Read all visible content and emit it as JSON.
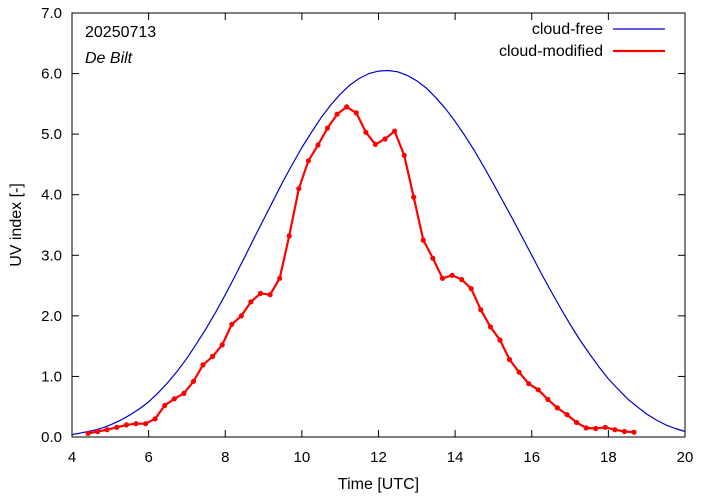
{
  "chart_data": {
    "type": "line",
    "title": "",
    "xlabel": "Time  [UTC]",
    "ylabel": "UV index  [-]",
    "xlim": [
      4,
      20
    ],
    "ylim": [
      0,
      7
    ],
    "xticks": [
      4,
      6,
      8,
      10,
      12,
      14,
      16,
      18,
      20
    ],
    "xtick_labels": [
      "4",
      "6",
      "8",
      "10",
      "12",
      "14",
      "16",
      "18",
      "20"
    ],
    "yticks": [
      0,
      1,
      2,
      3,
      4,
      5,
      6,
      7
    ],
    "ytick_labels": [
      "0.0",
      "1.0",
      "2.0",
      "3.0",
      "4.0",
      "5.0",
      "6.0",
      "7.0"
    ],
    "grid": false,
    "legend_position": "top-right",
    "annotations": [
      {
        "text": "20250713",
        "style": "normal"
      },
      {
        "text": "De Bilt",
        "style": "italic"
      }
    ],
    "series": [
      {
        "name": "cloud-free",
        "color": "#0000cc",
        "marker": "none",
        "x": [
          4.0,
          4.25,
          4.5,
          4.75,
          5.0,
          5.25,
          5.5,
          5.75,
          6.0,
          6.25,
          6.5,
          6.75,
          7.0,
          7.25,
          7.5,
          7.75,
          8.0,
          8.25,
          8.5,
          8.75,
          9.0,
          9.25,
          9.5,
          9.75,
          10.0,
          10.25,
          10.5,
          10.75,
          11.0,
          11.25,
          11.5,
          11.75,
          12.0,
          12.25,
          12.5,
          12.75,
          13.0,
          13.25,
          13.5,
          13.75,
          14.0,
          14.25,
          14.5,
          14.75,
          15.0,
          15.25,
          15.5,
          15.75,
          16.0,
          16.25,
          16.5,
          16.75,
          17.0,
          17.25,
          17.5,
          17.75,
          18.0,
          18.25,
          18.5,
          18.75,
          19.0,
          19.25,
          19.5,
          19.75,
          20.0
        ],
        "y": [
          0.04,
          0.07,
          0.1,
          0.14,
          0.2,
          0.27,
          0.36,
          0.46,
          0.58,
          0.73,
          0.9,
          1.09,
          1.3,
          1.54,
          1.79,
          2.06,
          2.35,
          2.65,
          2.96,
          3.28,
          3.59,
          3.9,
          4.21,
          4.5,
          4.78,
          5.03,
          5.27,
          5.48,
          5.66,
          5.81,
          5.92,
          6.0,
          6.04,
          6.05,
          6.03,
          5.97,
          5.88,
          5.76,
          5.6,
          5.42,
          5.21,
          4.98,
          4.73,
          4.46,
          4.18,
          3.89,
          3.6,
          3.3,
          3.0,
          2.7,
          2.41,
          2.13,
          1.86,
          1.61,
          1.38,
          1.16,
          0.96,
          0.79,
          0.63,
          0.5,
          0.38,
          0.28,
          0.2,
          0.14,
          0.09
        ]
      },
      {
        "name": "cloud-modified",
        "color": "#ff0000",
        "marker": "circle",
        "x": [
          4.42,
          4.67,
          4.92,
          5.17,
          5.42,
          5.67,
          5.92,
          6.17,
          6.42,
          6.67,
          6.92,
          7.17,
          7.42,
          7.67,
          7.92,
          8.17,
          8.42,
          8.67,
          8.92,
          9.17,
          9.42,
          9.67,
          9.92,
          10.17,
          10.42,
          10.67,
          10.92,
          11.17,
          11.42,
          11.67,
          11.92,
          12.17,
          12.42,
          12.67,
          12.92,
          13.17,
          13.42,
          13.67,
          13.92,
          14.17,
          14.42,
          14.67,
          14.92,
          15.17,
          15.42,
          15.67,
          15.92,
          16.17,
          16.42,
          16.67,
          16.92,
          17.17,
          17.42,
          17.67,
          17.92,
          18.17,
          18.42,
          18.67
        ],
        "y": [
          0.06,
          0.09,
          0.12,
          0.16,
          0.2,
          0.22,
          0.22,
          0.3,
          0.52,
          0.63,
          0.72,
          0.92,
          1.19,
          1.33,
          1.52,
          1.86,
          2.0,
          2.23,
          2.37,
          2.35,
          2.62,
          3.32,
          4.1,
          4.56,
          4.82,
          5.1,
          5.33,
          5.45,
          5.35,
          5.03,
          4.83,
          4.92,
          5.05,
          4.65,
          3.96,
          3.25,
          2.95,
          2.62,
          2.67,
          2.6,
          2.45,
          2.1,
          1.82,
          1.6,
          1.28,
          1.07,
          0.88,
          0.78,
          0.62,
          0.48,
          0.37,
          0.24,
          0.15,
          0.14,
          0.16,
          0.12,
          0.09,
          0.08
        ]
      }
    ]
  }
}
